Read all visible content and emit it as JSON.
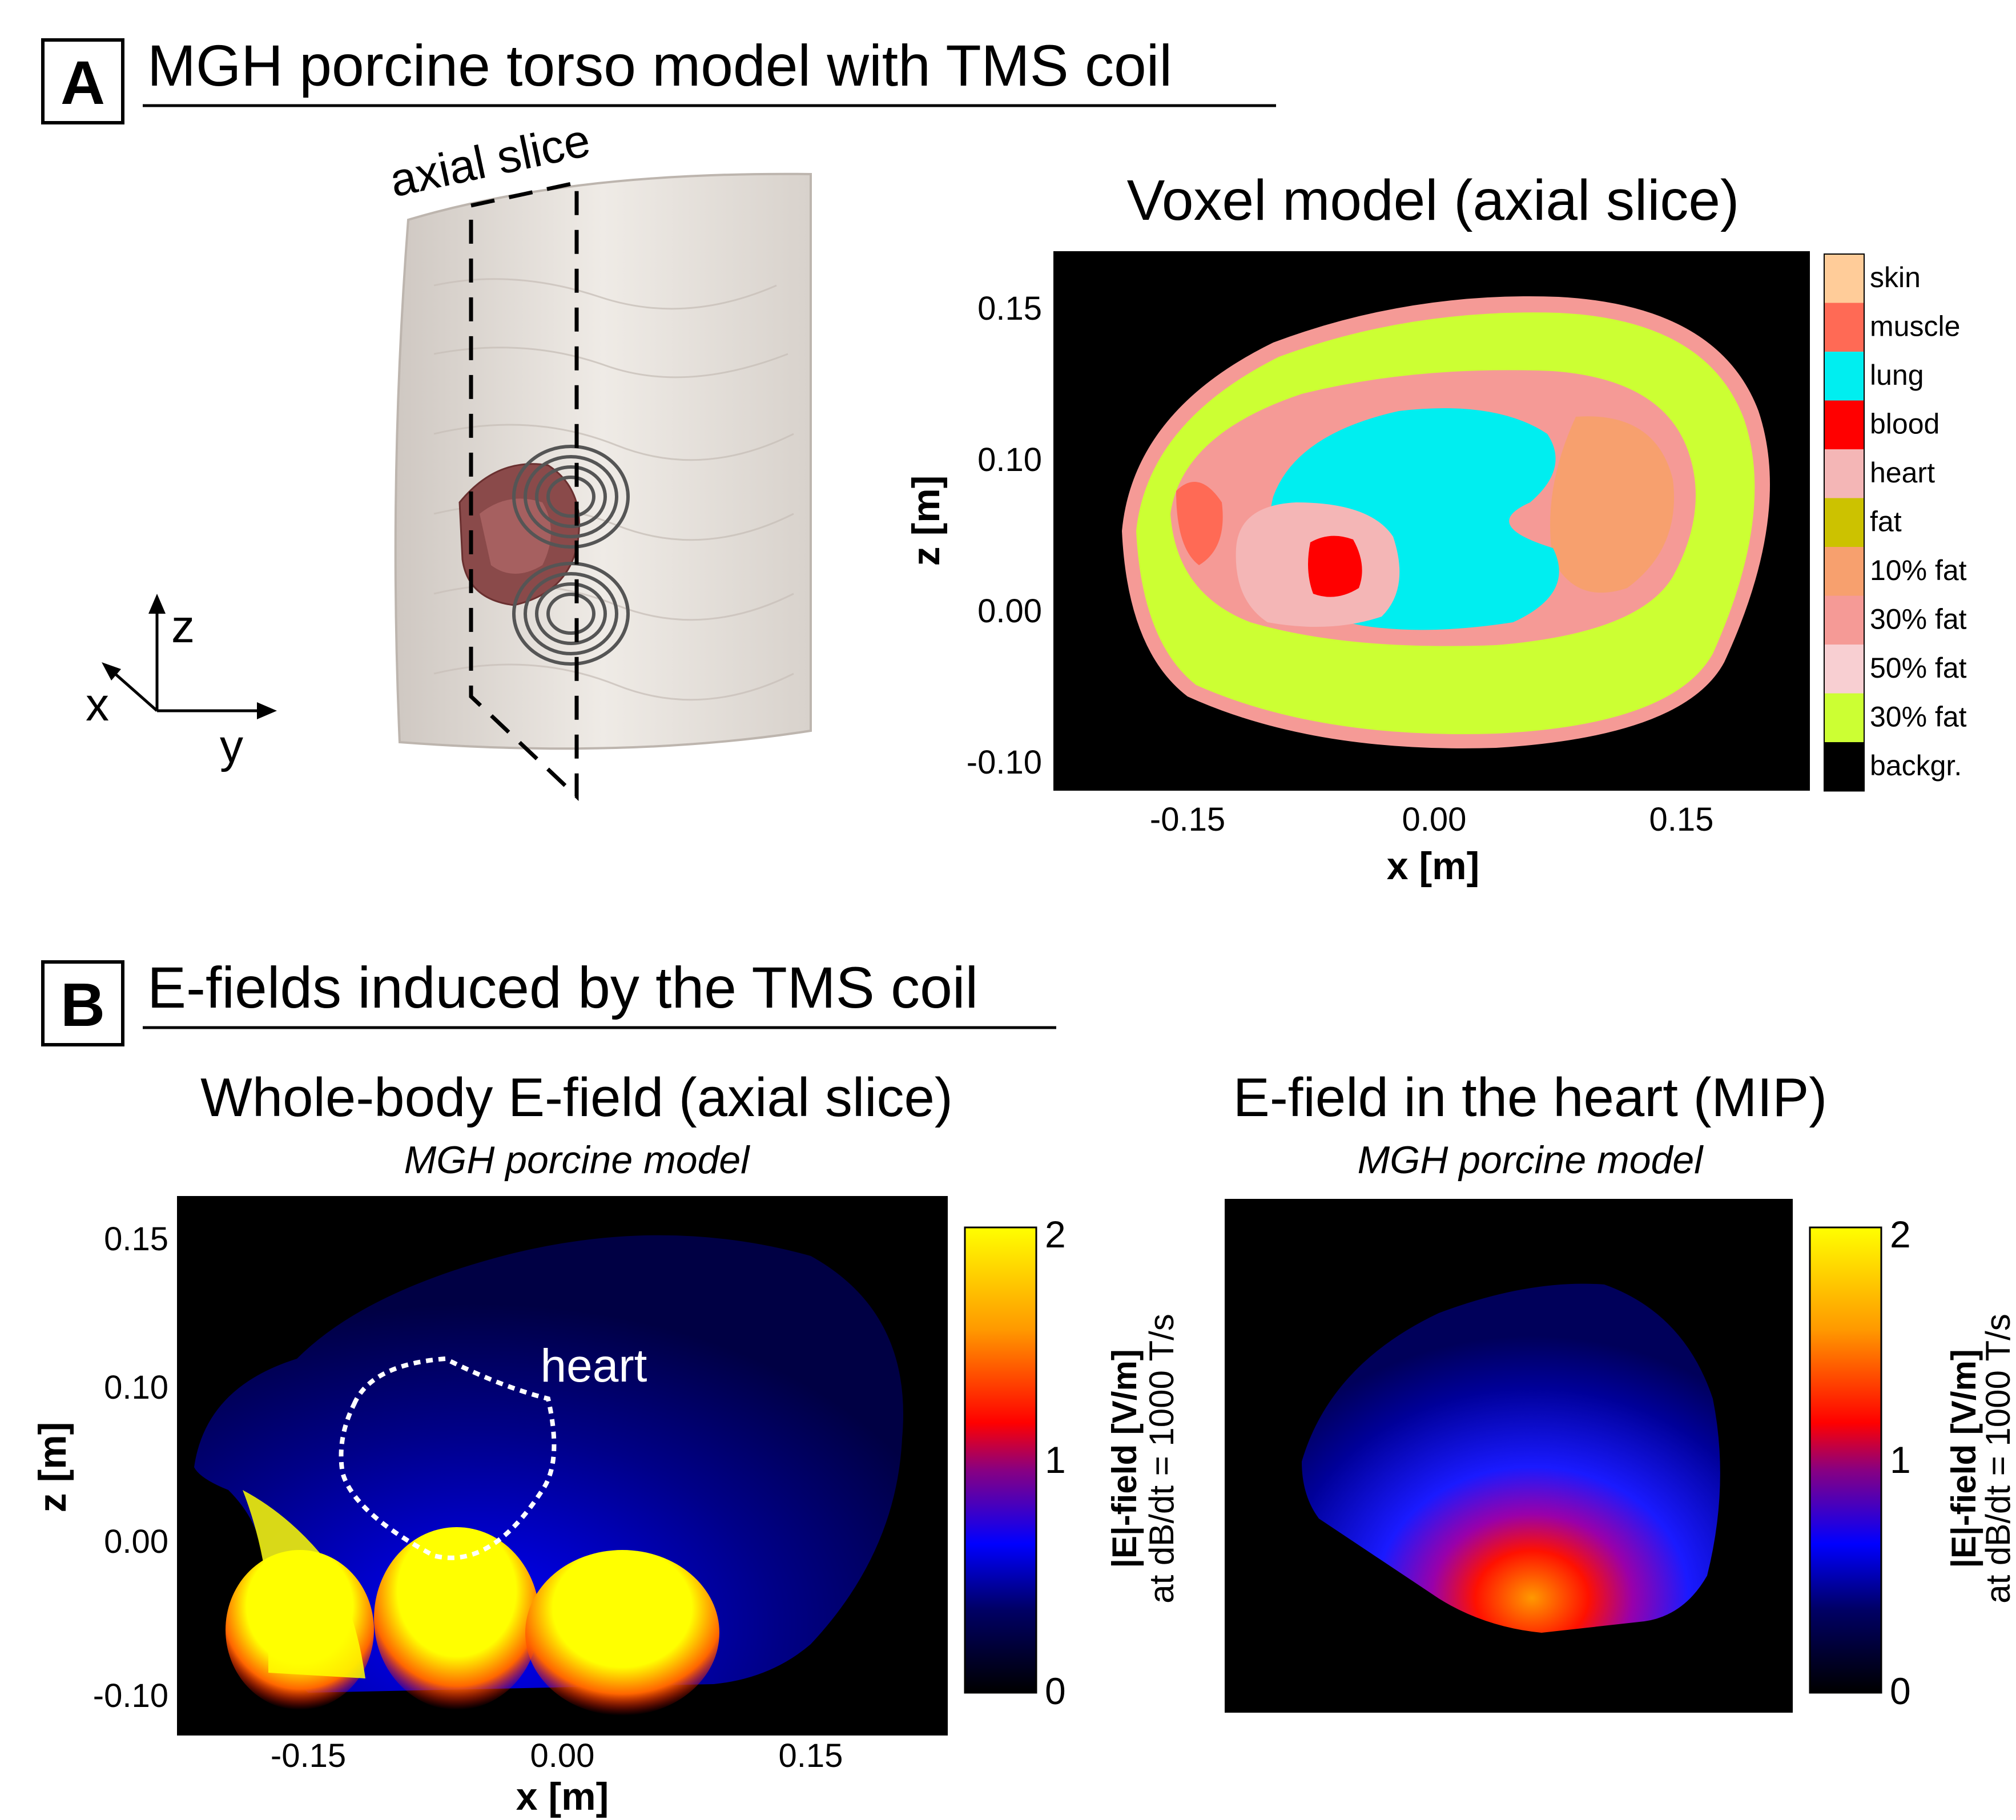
{
  "panelA": {
    "letter": "A",
    "title": "MGH porcine torso model with TMS coil",
    "slice_label": "axial slice",
    "axes_labels": {
      "z": "z",
      "x": "x",
      "y": "y"
    },
    "voxel": {
      "title": "Voxel model (axial slice)",
      "xlabel": "x [m]",
      "ylabel": "z [m]",
      "xticks": [
        "-0.15",
        "0.00",
        "0.15"
      ],
      "yticks": [
        "0.15",
        "0.10",
        "0.00",
        "-0.10"
      ],
      "legend": [
        {
          "label": "skin",
          "color": "#FFCC99"
        },
        {
          "label": "muscle",
          "color": "#FF6A55"
        },
        {
          "label": "lung",
          "color": "#00EEF0"
        },
        {
          "label": "blood",
          "color": "#FF0000"
        },
        {
          "label": "heart",
          "color": "#F4B6B6"
        },
        {
          "label": "fat",
          "color": "#CCC200"
        },
        {
          "label": "10% fat",
          "color": "#F7A06E"
        },
        {
          "label": "30% fat",
          "color": "#F59A96"
        },
        {
          "label": "50% fat",
          "color": "#F8CFD2"
        },
        {
          "label": "30% fat",
          "color": "#CCFF33"
        },
        {
          "label": "backgr.",
          "color": "#000000"
        }
      ]
    }
  },
  "panelB": {
    "letter": "B",
    "title": "E-fields induced by the TMS coil",
    "left": {
      "title": "Whole-body E-field (axial slice)",
      "subtitle": "MGH porcine model",
      "heart_label": "heart",
      "xlabel": "x [m]",
      "ylabel": "z [m]",
      "xticks": [
        "-0.15",
        "0.00",
        "0.15"
      ],
      "yticks": [
        "0.15",
        "0.10",
        "0.00",
        "-0.10"
      ]
    },
    "right": {
      "title": "E-field in the heart (MIP)",
      "subtitle": "MGH porcine model"
    },
    "colorbar": {
      "ticks": [
        "2",
        "1",
        "0"
      ],
      "label_bold": "|E|-field [V/m]",
      "label_sub": "at dB/dt = 1000 T/s"
    }
  },
  "chart_data": [
    {
      "type": "heatmap",
      "title": "Voxel model (axial slice)",
      "xlabel": "x [m]",
      "ylabel": "z [m]",
      "xlim": [
        -0.23,
        0.23
      ],
      "ylim": [
        -0.12,
        0.17
      ],
      "categories": [
        "skin",
        "muscle",
        "lung",
        "blood",
        "heart",
        "fat",
        "10% fat",
        "30% fat",
        "50% fat",
        "30% fat",
        "backgr."
      ]
    },
    {
      "type": "heatmap",
      "title": "Whole-body E-field (axial slice)",
      "xlabel": "x [m]",
      "ylabel": "z [m]",
      "xlim": [
        -0.23,
        0.23
      ],
      "ylim": [
        -0.12,
        0.17
      ],
      "colorbar_range": [
        0,
        2
      ],
      "colorbar_label": "|E|-field [V/m] at dB/dt = 1000 T/s"
    },
    {
      "type": "heatmap",
      "title": "E-field in the heart (MIP)",
      "colorbar_range": [
        0,
        2
      ],
      "colorbar_label": "|E|-field [V/m] at dB/dt = 1000 T/s"
    }
  ]
}
